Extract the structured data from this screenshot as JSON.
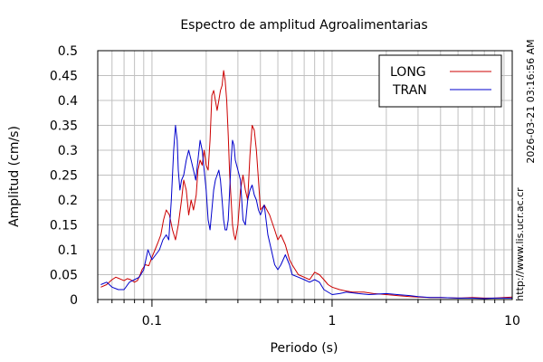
{
  "chart_data": {
    "type": "line",
    "title": "Espectro de amplitud Agroalimentarias",
    "xlabel": "Periodo (s)",
    "ylabel": "Amplitud (cm/s)",
    "xscale": "log",
    "xlim": [
      0.05,
      10
    ],
    "ylim": [
      0,
      0.5
    ],
    "x_tick_labels": [
      {
        "value": 0.1,
        "label": "0.1"
      },
      {
        "value": 1,
        "label": "1"
      },
      {
        "value": 10,
        "label": "10"
      }
    ],
    "y_tick_labels": [
      {
        "value": 0,
        "label": "0"
      },
      {
        "value": 0.05,
        "label": "0.05"
      },
      {
        "value": 0.1,
        "label": "0.1"
      },
      {
        "value": 0.15,
        "label": "0.15"
      },
      {
        "value": 0.2,
        "label": "0.2"
      },
      {
        "value": 0.25,
        "label": "0.25"
      },
      {
        "value": 0.3,
        "label": "0.3"
      },
      {
        "value": 0.35,
        "label": "0.35"
      },
      {
        "value": 0.4,
        "label": "0.4"
      },
      {
        "value": 0.45,
        "label": "0.45"
      },
      {
        "value": 0.5,
        "label": "0.5"
      }
    ],
    "grid": true,
    "legend_position": "top-right",
    "series": [
      {
        "name": "LONG",
        "color": "#cc0000",
        "points": [
          [
            0.052,
            0.025
          ],
          [
            0.056,
            0.03
          ],
          [
            0.06,
            0.04
          ],
          [
            0.063,
            0.045
          ],
          [
            0.066,
            0.042
          ],
          [
            0.07,
            0.038
          ],
          [
            0.073,
            0.042
          ],
          [
            0.076,
            0.04
          ],
          [
            0.08,
            0.035
          ],
          [
            0.083,
            0.038
          ],
          [
            0.086,
            0.05
          ],
          [
            0.088,
            0.06
          ],
          [
            0.092,
            0.07
          ],
          [
            0.096,
            0.068
          ],
          [
            0.1,
            0.085
          ],
          [
            0.104,
            0.1
          ],
          [
            0.108,
            0.115
          ],
          [
            0.112,
            0.13
          ],
          [
            0.116,
            0.16
          ],
          [
            0.12,
            0.18
          ],
          [
            0.125,
            0.17
          ],
          [
            0.13,
            0.14
          ],
          [
            0.135,
            0.12
          ],
          [
            0.14,
            0.15
          ],
          [
            0.146,
            0.2
          ],
          [
            0.15,
            0.24
          ],
          [
            0.155,
            0.22
          ],
          [
            0.16,
            0.17
          ],
          [
            0.165,
            0.2
          ],
          [
            0.17,
            0.18
          ],
          [
            0.176,
            0.21
          ],
          [
            0.18,
            0.26
          ],
          [
            0.185,
            0.28
          ],
          [
            0.19,
            0.27
          ],
          [
            0.195,
            0.3
          ],
          [
            0.2,
            0.27
          ],
          [
            0.205,
            0.26
          ],
          [
            0.21,
            0.32
          ],
          [
            0.215,
            0.41
          ],
          [
            0.22,
            0.42
          ],
          [
            0.225,
            0.4
          ],
          [
            0.23,
            0.38
          ],
          [
            0.235,
            0.4
          ],
          [
            0.24,
            0.42
          ],
          [
            0.245,
            0.43
          ],
          [
            0.25,
            0.46
          ],
          [
            0.255,
            0.44
          ],
          [
            0.26,
            0.4
          ],
          [
            0.265,
            0.33
          ],
          [
            0.27,
            0.25
          ],
          [
            0.275,
            0.2
          ],
          [
            0.28,
            0.15
          ],
          [
            0.285,
            0.13
          ],
          [
            0.29,
            0.12
          ],
          [
            0.3,
            0.15
          ],
          [
            0.31,
            0.22
          ],
          [
            0.32,
            0.25
          ],
          [
            0.33,
            0.22
          ],
          [
            0.34,
            0.2
          ],
          [
            0.35,
            0.29
          ],
          [
            0.36,
            0.35
          ],
          [
            0.37,
            0.34
          ],
          [
            0.38,
            0.3
          ],
          [
            0.39,
            0.24
          ],
          [
            0.4,
            0.18
          ],
          [
            0.42,
            0.19
          ],
          [
            0.45,
            0.17
          ],
          [
            0.48,
            0.14
          ],
          [
            0.5,
            0.12
          ],
          [
            0.52,
            0.13
          ],
          [
            0.55,
            0.11
          ],
          [
            0.58,
            0.08
          ],
          [
            0.6,
            0.07
          ],
          [
            0.65,
            0.05
          ],
          [
            0.7,
            0.045
          ],
          [
            0.75,
            0.04
          ],
          [
            0.8,
            0.055
          ],
          [
            0.85,
            0.05
          ],
          [
            0.9,
            0.04
          ],
          [
            0.95,
            0.03
          ],
          [
            1.0,
            0.025
          ],
          [
            1.1,
            0.02
          ],
          [
            1.2,
            0.017
          ],
          [
            1.3,
            0.015
          ],
          [
            1.5,
            0.015
          ],
          [
            1.7,
            0.012
          ],
          [
            2.0,
            0.01
          ],
          [
            2.3,
            0.008
          ],
          [
            2.7,
            0.006
          ],
          [
            3.0,
            0.005
          ],
          [
            3.5,
            0.004
          ],
          [
            4.0,
            0.004
          ],
          [
            5.0,
            0.003
          ],
          [
            6.0,
            0.004
          ],
          [
            7.0,
            0.003
          ],
          [
            8.0,
            0.003
          ],
          [
            9.0,
            0.004
          ],
          [
            10.0,
            0.005
          ]
        ]
      },
      {
        "name": "TRAN",
        "color": "#0000cc",
        "points": [
          [
            0.052,
            0.03
          ],
          [
            0.056,
            0.035
          ],
          [
            0.06,
            0.025
          ],
          [
            0.065,
            0.02
          ],
          [
            0.07,
            0.02
          ],
          [
            0.075,
            0.035
          ],
          [
            0.08,
            0.04
          ],
          [
            0.085,
            0.045
          ],
          [
            0.09,
            0.06
          ],
          [
            0.095,
            0.1
          ],
          [
            0.1,
            0.08
          ],
          [
            0.105,
            0.09
          ],
          [
            0.11,
            0.1
          ],
          [
            0.115,
            0.12
          ],
          [
            0.12,
            0.13
          ],
          [
            0.124,
            0.12
          ],
          [
            0.128,
            0.2
          ],
          [
            0.132,
            0.3
          ],
          [
            0.135,
            0.35
          ],
          [
            0.138,
            0.32
          ],
          [
            0.14,
            0.26
          ],
          [
            0.143,
            0.22
          ],
          [
            0.146,
            0.24
          ],
          [
            0.15,
            0.25
          ],
          [
            0.155,
            0.28
          ],
          [
            0.16,
            0.3
          ],
          [
            0.165,
            0.28
          ],
          [
            0.17,
            0.26
          ],
          [
            0.175,
            0.24
          ],
          [
            0.18,
            0.28
          ],
          [
            0.185,
            0.32
          ],
          [
            0.19,
            0.3
          ],
          [
            0.195,
            0.26
          ],
          [
            0.2,
            0.22
          ],
          [
            0.205,
            0.16
          ],
          [
            0.21,
            0.14
          ],
          [
            0.215,
            0.18
          ],
          [
            0.22,
            0.22
          ],
          [
            0.225,
            0.24
          ],
          [
            0.23,
            0.25
          ],
          [
            0.235,
            0.26
          ],
          [
            0.24,
            0.24
          ],
          [
            0.245,
            0.2
          ],
          [
            0.25,
            0.16
          ],
          [
            0.255,
            0.14
          ],
          [
            0.26,
            0.14
          ],
          [
            0.265,
            0.16
          ],
          [
            0.27,
            0.22
          ],
          [
            0.275,
            0.28
          ],
          [
            0.28,
            0.32
          ],
          [
            0.285,
            0.31
          ],
          [
            0.29,
            0.28
          ],
          [
            0.3,
            0.26
          ],
          [
            0.31,
            0.24
          ],
          [
            0.32,
            0.16
          ],
          [
            0.33,
            0.15
          ],
          [
            0.34,
            0.2
          ],
          [
            0.35,
            0.22
          ],
          [
            0.36,
            0.23
          ],
          [
            0.37,
            0.21
          ],
          [
            0.38,
            0.2
          ],
          [
            0.39,
            0.18
          ],
          [
            0.4,
            0.17
          ],
          [
            0.42,
            0.19
          ],
          [
            0.44,
            0.13
          ],
          [
            0.46,
            0.1
          ],
          [
            0.48,
            0.07
          ],
          [
            0.5,
            0.06
          ],
          [
            0.52,
            0.07
          ],
          [
            0.55,
            0.09
          ],
          [
            0.58,
            0.07
          ],
          [
            0.6,
            0.05
          ],
          [
            0.65,
            0.045
          ],
          [
            0.7,
            0.04
          ],
          [
            0.75,
            0.035
          ],
          [
            0.8,
            0.04
          ],
          [
            0.85,
            0.035
          ],
          [
            0.9,
            0.02
          ],
          [
            1.0,
            0.01
          ],
          [
            1.1,
            0.012
          ],
          [
            1.2,
            0.015
          ],
          [
            1.4,
            0.012
          ],
          [
            1.6,
            0.01
          ],
          [
            2.0,
            0.012
          ],
          [
            2.3,
            0.01
          ],
          [
            2.7,
            0.008
          ],
          [
            3.0,
            0.006
          ],
          [
            3.5,
            0.004
          ],
          [
            4.0,
            0.004
          ],
          [
            5.0,
            0.003
          ],
          [
            6.0,
            0.003
          ],
          [
            7.0,
            0.002
          ],
          [
            8.0,
            0.003
          ],
          [
            9.0,
            0.003
          ],
          [
            10.0,
            0.003
          ]
        ]
      }
    ]
  },
  "side_labels": {
    "timestamp": "2026-03-21 03:16:56 AM",
    "url": "http://www.lis.ucr.ac.cr"
  }
}
